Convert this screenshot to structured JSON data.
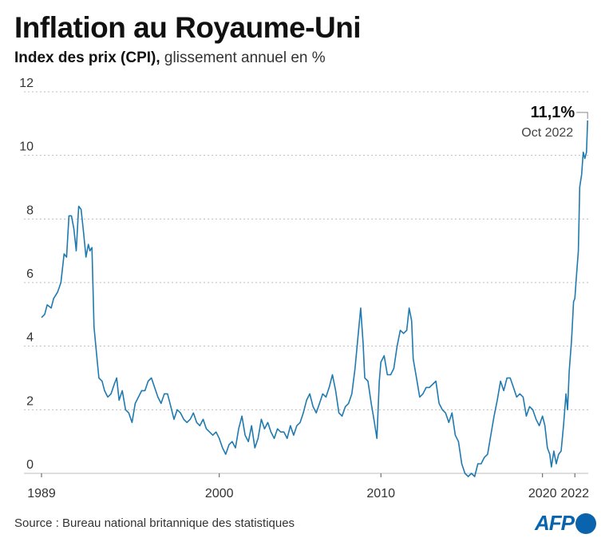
{
  "header": {
    "title": "Inflation au Royaume-Uni",
    "subtitle_bold": "Index des prix (CPI),",
    "subtitle_rest": " glissement annuel en %"
  },
  "footer": {
    "source": "Source : Bureau national britannique des statistiques",
    "logo_text": "AFP"
  },
  "colors": {
    "line": "#1f7ab0",
    "grid": "#bdbdbd",
    "logo": "#0a63ad"
  },
  "chart_data": {
    "type": "line",
    "title": "Inflation au Royaume-Uni",
    "subtitle": "Index des prix (CPI), glissement annuel en %",
    "xlabel": "",
    "ylabel": "%",
    "xlim": [
      1989,
      2022.83
    ],
    "ylim": [
      0,
      12
    ],
    "yticks": [
      0,
      2,
      4,
      6,
      8,
      10,
      12
    ],
    "xticks": [
      "1989",
      "2000",
      "2010",
      "2020",
      "2022"
    ],
    "xtick_values": [
      1989,
      2000,
      2010,
      2020,
      2022
    ],
    "grid": true,
    "annotation": {
      "value": "11,1%",
      "date": "Oct 2022",
      "x": 2022.79,
      "y": 11.1
    },
    "series": [
      {
        "name": "CPI",
        "points": [
          [
            1989.0,
            4.9
          ],
          [
            1989.2,
            5.0
          ],
          [
            1989.35,
            5.3
          ],
          [
            1989.6,
            5.2
          ],
          [
            1989.75,
            5.5
          ],
          [
            1990.0,
            5.7
          ],
          [
            1990.2,
            6.0
          ],
          [
            1990.4,
            6.9
          ],
          [
            1990.55,
            6.8
          ],
          [
            1990.7,
            8.1
          ],
          [
            1990.85,
            8.1
          ],
          [
            1991.0,
            7.7
          ],
          [
            1991.15,
            7.0
          ],
          [
            1991.3,
            8.4
          ],
          [
            1991.45,
            8.3
          ],
          [
            1991.6,
            7.6
          ],
          [
            1991.75,
            6.8
          ],
          [
            1991.9,
            7.2
          ],
          [
            1992.0,
            7.0
          ],
          [
            1992.12,
            7.1
          ],
          [
            1992.25,
            4.6
          ],
          [
            1992.4,
            3.8
          ],
          [
            1992.55,
            3.0
          ],
          [
            1992.75,
            2.9
          ],
          [
            1992.9,
            2.6
          ],
          [
            1993.1,
            2.4
          ],
          [
            1993.3,
            2.5
          ],
          [
            1993.5,
            2.8
          ],
          [
            1993.65,
            3.0
          ],
          [
            1993.8,
            2.3
          ],
          [
            1994.0,
            2.6
          ],
          [
            1994.2,
            2.0
          ],
          [
            1994.4,
            1.9
          ],
          [
            1994.6,
            1.6
          ],
          [
            1994.8,
            2.2
          ],
          [
            1995.0,
            2.4
          ],
          [
            1995.2,
            2.6
          ],
          [
            1995.4,
            2.6
          ],
          [
            1995.6,
            2.9
          ],
          [
            1995.8,
            3.0
          ],
          [
            1996.0,
            2.7
          ],
          [
            1996.2,
            2.4
          ],
          [
            1996.4,
            2.2
          ],
          [
            1996.6,
            2.5
          ],
          [
            1996.8,
            2.5
          ],
          [
            1997.0,
            2.1
          ],
          [
            1997.2,
            1.7
          ],
          [
            1997.4,
            2.0
          ],
          [
            1997.6,
            1.9
          ],
          [
            1997.8,
            1.7
          ],
          [
            1998.0,
            1.6
          ],
          [
            1998.2,
            1.7
          ],
          [
            1998.4,
            1.9
          ],
          [
            1998.6,
            1.6
          ],
          [
            1998.8,
            1.5
          ],
          [
            1999.0,
            1.7
          ],
          [
            1999.2,
            1.4
          ],
          [
            1999.4,
            1.3
          ],
          [
            1999.6,
            1.2
          ],
          [
            1999.8,
            1.3
          ],
          [
            2000.0,
            1.1
          ],
          [
            2000.2,
            0.8
          ],
          [
            2000.4,
            0.6
          ],
          [
            2000.6,
            0.9
          ],
          [
            2000.8,
            1.0
          ],
          [
            2001.0,
            0.8
          ],
          [
            2001.2,
            1.4
          ],
          [
            2001.4,
            1.8
          ],
          [
            2001.6,
            1.2
          ],
          [
            2001.8,
            1.0
          ],
          [
            2002.0,
            1.5
          ],
          [
            2002.2,
            0.8
          ],
          [
            2002.4,
            1.1
          ],
          [
            2002.6,
            1.7
          ],
          [
            2002.8,
            1.4
          ],
          [
            2003.0,
            1.6
          ],
          [
            2003.2,
            1.3
          ],
          [
            2003.4,
            1.1
          ],
          [
            2003.6,
            1.4
          ],
          [
            2003.8,
            1.3
          ],
          [
            2004.0,
            1.3
          ],
          [
            2004.2,
            1.1
          ],
          [
            2004.4,
            1.5
          ],
          [
            2004.6,
            1.2
          ],
          [
            2004.8,
            1.5
          ],
          [
            2005.0,
            1.6
          ],
          [
            2005.2,
            1.9
          ],
          [
            2005.4,
            2.3
          ],
          [
            2005.6,
            2.5
          ],
          [
            2005.8,
            2.1
          ],
          [
            2006.0,
            1.9
          ],
          [
            2006.2,
            2.2
          ],
          [
            2006.4,
            2.5
          ],
          [
            2006.6,
            2.4
          ],
          [
            2006.8,
            2.7
          ],
          [
            2007.0,
            3.1
          ],
          [
            2007.2,
            2.6
          ],
          [
            2007.4,
            1.9
          ],
          [
            2007.6,
            1.8
          ],
          [
            2007.8,
            2.1
          ],
          [
            2008.0,
            2.2
          ],
          [
            2008.2,
            2.5
          ],
          [
            2008.4,
            3.3
          ],
          [
            2008.6,
            4.4
          ],
          [
            2008.75,
            5.2
          ],
          [
            2008.9,
            4.1
          ],
          [
            2009.0,
            3.0
          ],
          [
            2009.2,
            2.9
          ],
          [
            2009.4,
            2.2
          ],
          [
            2009.6,
            1.6
          ],
          [
            2009.75,
            1.1
          ],
          [
            2009.9,
            2.9
          ],
          [
            2010.0,
            3.5
          ],
          [
            2010.2,
            3.7
          ],
          [
            2010.4,
            3.1
          ],
          [
            2010.6,
            3.1
          ],
          [
            2010.8,
            3.3
          ],
          [
            2011.0,
            4.0
          ],
          [
            2011.2,
            4.5
          ],
          [
            2011.4,
            4.4
          ],
          [
            2011.6,
            4.5
          ],
          [
            2011.75,
            5.2
          ],
          [
            2011.9,
            4.8
          ],
          [
            2012.0,
            3.6
          ],
          [
            2012.2,
            3.0
          ],
          [
            2012.4,
            2.4
          ],
          [
            2012.6,
            2.5
          ],
          [
            2012.8,
            2.7
          ],
          [
            2013.0,
            2.7
          ],
          [
            2013.2,
            2.8
          ],
          [
            2013.4,
            2.9
          ],
          [
            2013.6,
            2.2
          ],
          [
            2013.8,
            2.0
          ],
          [
            2014.0,
            1.9
          ],
          [
            2014.2,
            1.6
          ],
          [
            2014.4,
            1.9
          ],
          [
            2014.6,
            1.2
          ],
          [
            2014.8,
            1.0
          ],
          [
            2015.0,
            0.3
          ],
          [
            2015.2,
            0.0
          ],
          [
            2015.4,
            -0.1
          ],
          [
            2015.6,
            0.0
          ],
          [
            2015.8,
            -0.1
          ],
          [
            2016.0,
            0.3
          ],
          [
            2016.2,
            0.3
          ],
          [
            2016.4,
            0.5
          ],
          [
            2016.6,
            0.6
          ],
          [
            2016.8,
            1.2
          ],
          [
            2017.0,
            1.8
          ],
          [
            2017.2,
            2.3
          ],
          [
            2017.4,
            2.9
          ],
          [
            2017.6,
            2.6
          ],
          [
            2017.8,
            3.0
          ],
          [
            2018.0,
            3.0
          ],
          [
            2018.2,
            2.7
          ],
          [
            2018.4,
            2.4
          ],
          [
            2018.6,
            2.5
          ],
          [
            2018.8,
            2.4
          ],
          [
            2019.0,
            1.8
          ],
          [
            2019.2,
            2.1
          ],
          [
            2019.4,
            2.0
          ],
          [
            2019.6,
            1.7
          ],
          [
            2019.8,
            1.5
          ],
          [
            2020.0,
            1.8
          ],
          [
            2020.15,
            1.5
          ],
          [
            2020.3,
            0.8
          ],
          [
            2020.45,
            0.6
          ],
          [
            2020.55,
            0.2
          ],
          [
            2020.7,
            0.7
          ],
          [
            2020.85,
            0.3
          ],
          [
            2021.0,
            0.6
          ],
          [
            2021.15,
            0.7
          ],
          [
            2021.3,
            1.5
          ],
          [
            2021.45,
            2.5
          ],
          [
            2021.55,
            2.0
          ],
          [
            2021.65,
            3.2
          ],
          [
            2021.8,
            4.2
          ],
          [
            2021.92,
            5.4
          ],
          [
            2022.0,
            5.5
          ],
          [
            2022.1,
            6.2
          ],
          [
            2022.22,
            7.0
          ],
          [
            2022.3,
            9.0
          ],
          [
            2022.42,
            9.4
          ],
          [
            2022.52,
            10.1
          ],
          [
            2022.62,
            9.9
          ],
          [
            2022.72,
            10.1
          ],
          [
            2022.79,
            11.1
          ]
        ]
      }
    ]
  }
}
